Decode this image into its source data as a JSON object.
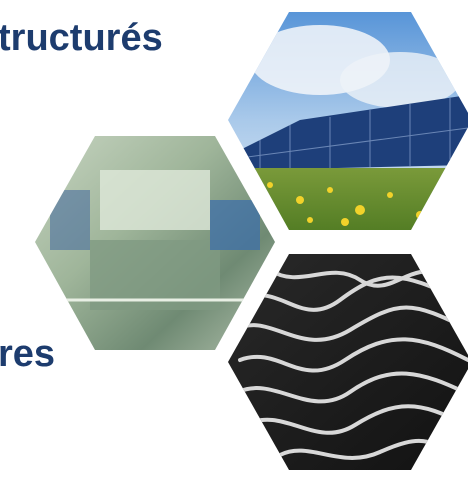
{
  "heading": {
    "line1": "tructurés",
    "line2": "res"
  }
}
